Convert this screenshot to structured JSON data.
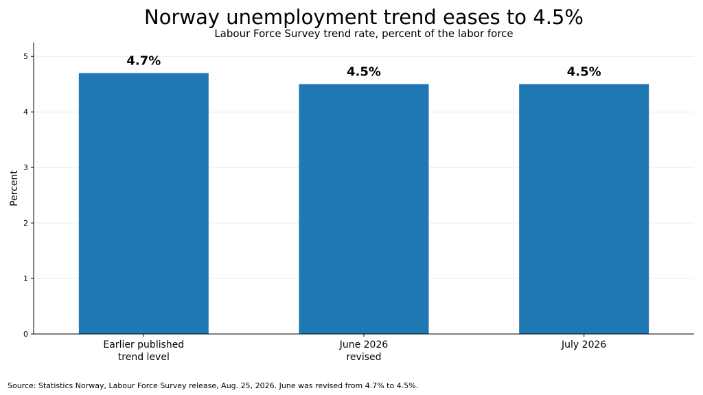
{
  "chart_data": {
    "type": "bar",
    "title": "Norway unemployment trend eases to 4.5%",
    "subtitle": "Labour Force Survey trend rate, percent of the labor force",
    "ylabel": "Percent",
    "xlabel": "",
    "categories": [
      [
        "Earlier published",
        "trend level"
      ],
      [
        "June 2026",
        "revised"
      ],
      [
        "July 2026"
      ]
    ],
    "values": [
      4.7,
      4.5,
      4.5
    ],
    "data_labels": [
      "4.7%",
      "4.5%",
      "4.5%"
    ],
    "ylim": [
      0,
      5.25
    ],
    "yticks": [
      0,
      1,
      2,
      3,
      4,
      5
    ],
    "grid": "horizontal",
    "bar_color": "#1f77b4",
    "grid_color": "#ebebeb",
    "source": "Source: Statistics Norway, Labour Force Survey release, Aug. 25, 2026. June was revised from 4.7% to 4.5%."
  }
}
